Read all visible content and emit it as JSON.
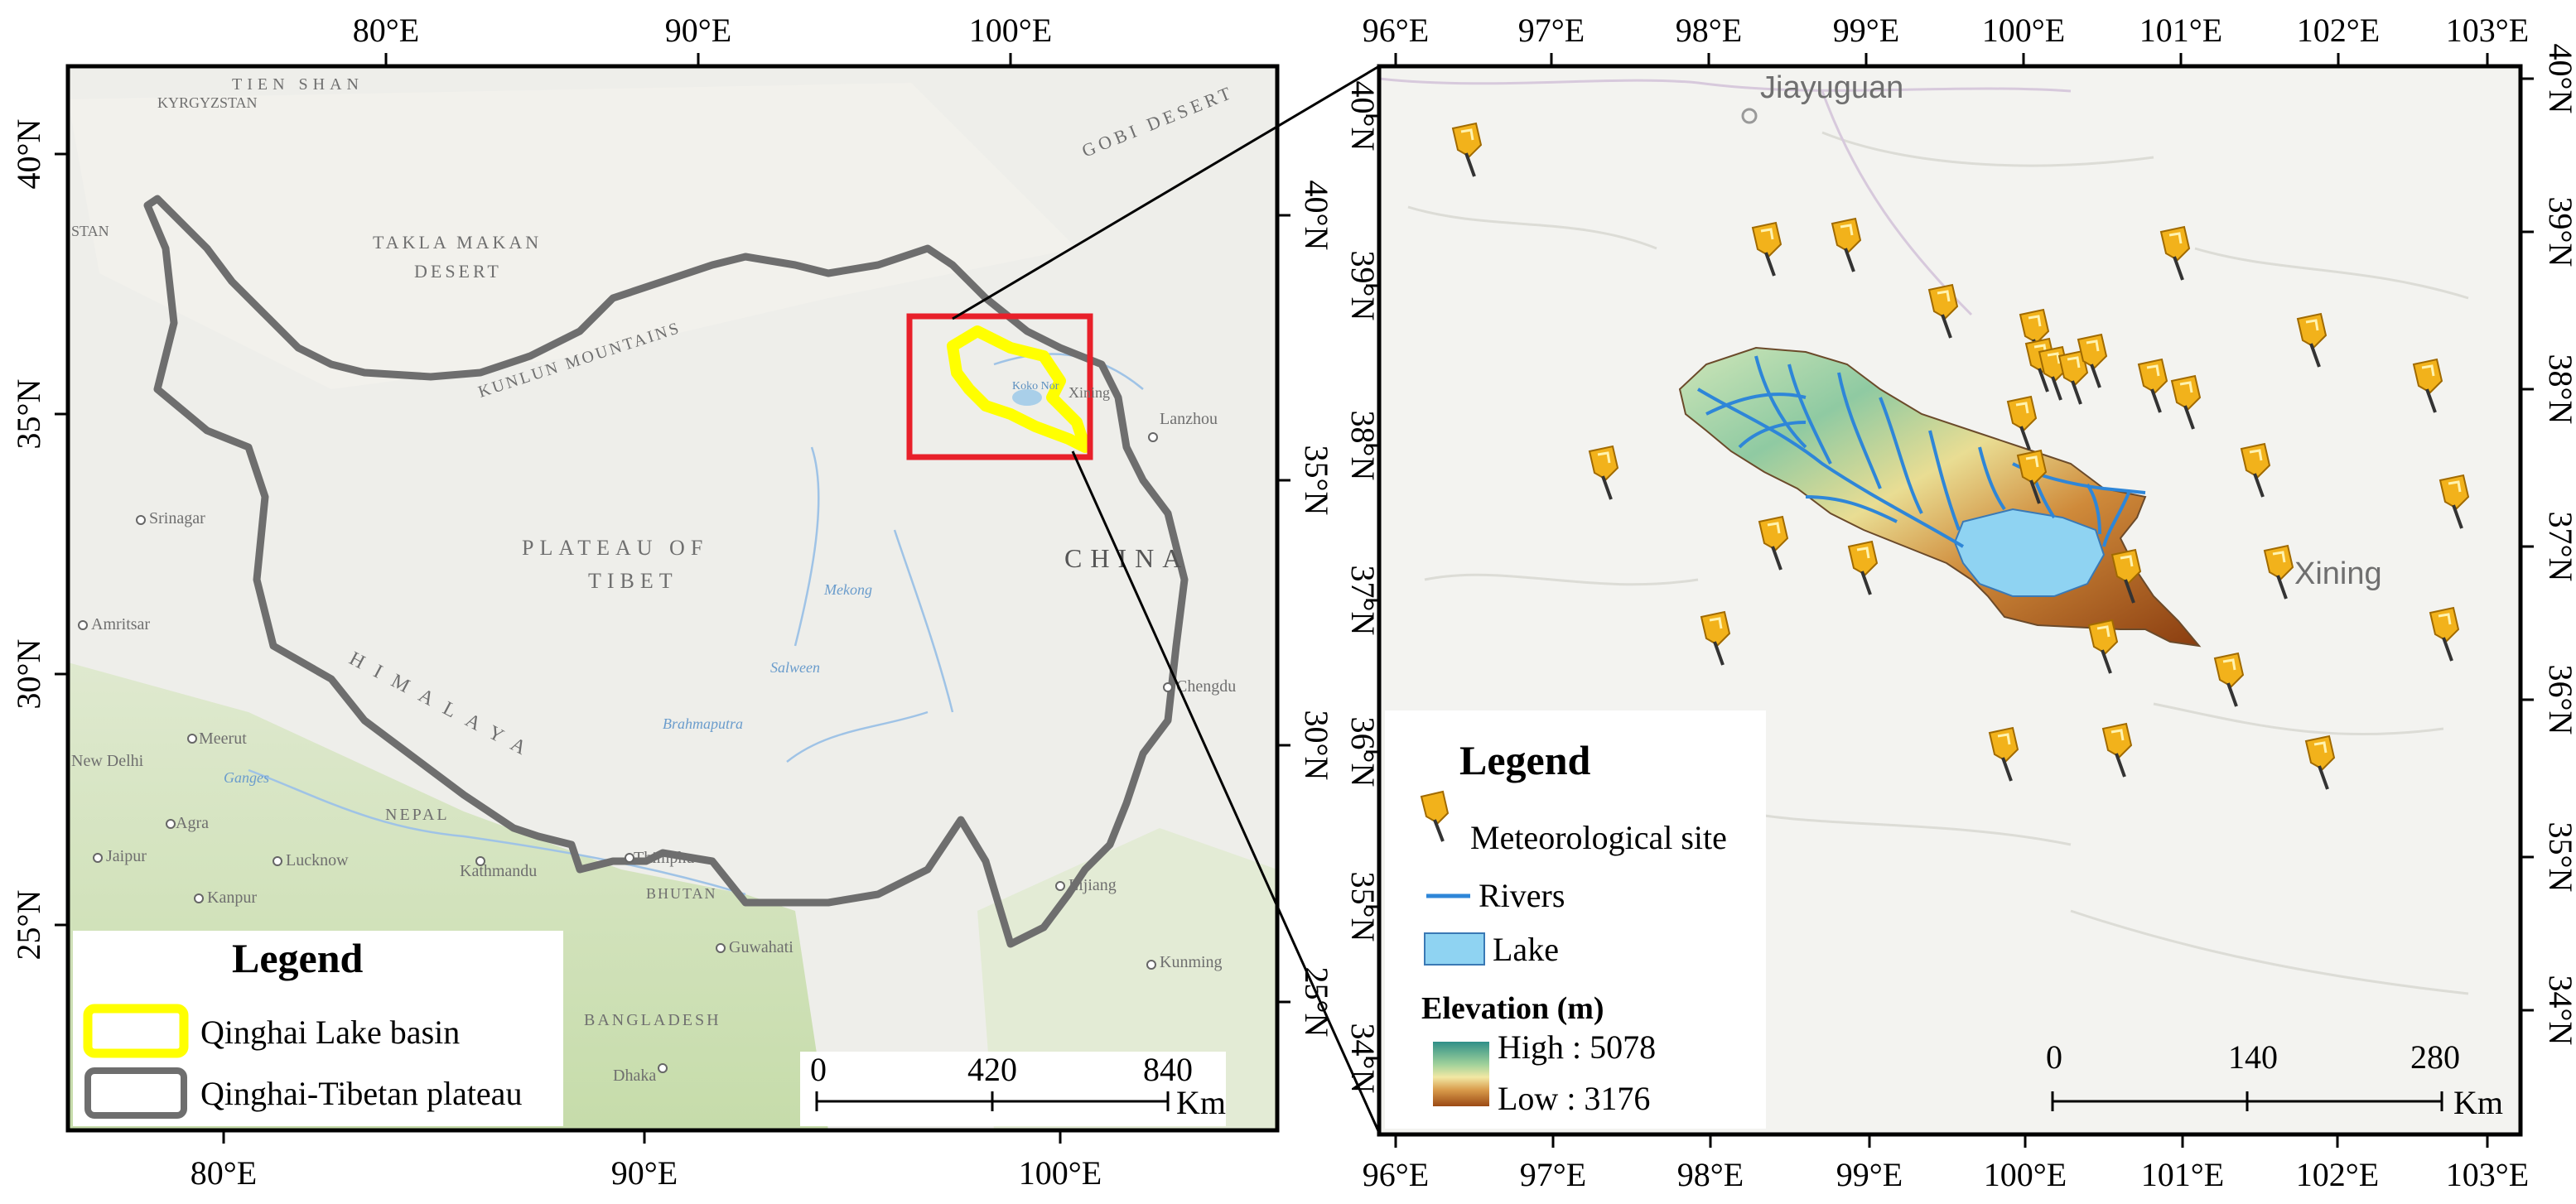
{
  "left_map": {
    "top_ticks": [
      "80°E",
      "90°E",
      "100°E"
    ],
    "bottom_ticks": [
      "80°E",
      "90°E",
      "100°E"
    ],
    "left_ticks": [
      "40°N",
      "35°N",
      "30°N",
      "25°N"
    ],
    "right_ticks": [
      "40°N",
      "35°N",
      "30°N",
      "25°N"
    ],
    "place_labels": {
      "takla1": "TAKLA MAKAN",
      "takla2": "DESERT",
      "kunlun": "KUNLUN MOUNTAINS",
      "plateau1": "PLATEAU OF",
      "plateau2": "TIBET",
      "himalaya": "HIMALAYA",
      "china": "CHINA",
      "gobi": "GOBI DESERT",
      "tienshan": "TIEN SHAN",
      "kyrgyzstan": "KYRGYZSTAN",
      "stan": "STAN",
      "srinagar": "Srinagar",
      "amritsar": "Amritsar",
      "newdelhi": "New Delhi",
      "meerut": "Meerut",
      "agra": "Agra",
      "jaipur": "Jaipur",
      "lucknow": "Lucknow",
      "kanpur": "Kanpur",
      "nepal": "NEPAL",
      "kathmandu": "Kathmandu",
      "thimphu": "Thimphu",
      "bhutan": "BHUTAN",
      "guwahati": "Guwahati",
      "bangladesh": "BANGLADESH",
      "dhaka": "Dhaka",
      "lanzhou": "Lanzhou",
      "xining": "Xining",
      "chengdu": "Chengdu",
      "lijiang": "Lijiang",
      "kunming": "Kunming",
      "koko": "Koko Nor",
      "mekong": "Mekong",
      "salween": "Salween",
      "brahmaputra": "Brahmaputra",
      "ganges": "Ganges"
    },
    "legend": {
      "title": "Legend",
      "items": [
        {
          "label": "Qinghai Lake basin",
          "color": "#ffff00"
        },
        {
          "label": "Qinghai-Tibetan plateau",
          "color": "#6e6e6e"
        }
      ]
    },
    "scale_bar": {
      "labels": [
        "0",
        "420",
        "840"
      ],
      "unit": "Km"
    },
    "inset_box_color": "#e8202a"
  },
  "right_map": {
    "top_ticks": [
      "96°E",
      "97°E",
      "98°E",
      "99°E",
      "100°E",
      "101°E",
      "102°E",
      "103°E"
    ],
    "bottom_ticks": [
      "96°E",
      "97°E",
      "98°E",
      "99°E",
      "100°E",
      "101°E",
      "102°E",
      "103°E"
    ],
    "left_ticks": [
      "40°N",
      "39°N",
      "38°N",
      "37°N",
      "36°N",
      "35°N",
      "34°N"
    ],
    "right_ticks": [
      "40°N",
      "39°N",
      "38°N",
      "37°N",
      "36°N",
      "35°N",
      "34°N"
    ],
    "place_labels": {
      "jiayuguan": "Jiayuguan",
      "xining": "Xining"
    },
    "legend": {
      "title": "Legend",
      "site_label": "Meteorological site",
      "rivers_label": "Rivers",
      "lake_label": "Lake",
      "elevation_title": "Elevation (m)",
      "high_label": "High : 5078",
      "low_label": "Low : 3176"
    },
    "scale_bar": {
      "labels": [
        "0",
        "140",
        "280"
      ],
      "unit": "Km"
    },
    "colors": {
      "river": "#2e86d8",
      "lake": "#8fd3f2",
      "pin": "#f2b21b",
      "elev_high": "#2f8f88",
      "elev_low": "#9b4a14"
    }
  }
}
